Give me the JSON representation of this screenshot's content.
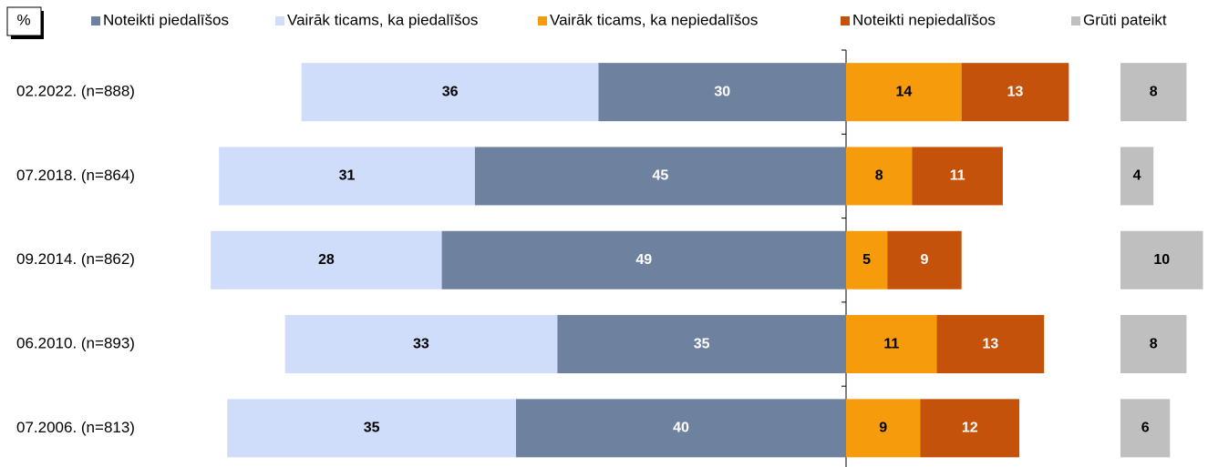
{
  "chart_data": {
    "type": "diverging-bar",
    "unit_label": "%",
    "categories": [
      "02.2022. (n=888)",
      "07.2018. (n=864)",
      "09.2014. (n=862)",
      "06.2010. (n=893)",
      "07.2006. (n=813)"
    ],
    "series": [
      {
        "name": "Noteikti piedalīšos",
        "color": "#6e82a0",
        "values": [
          30,
          45,
          49,
          35,
          40
        ]
      },
      {
        "name": "Vairāk ticams, ka piedalīšos",
        "color": "#cfdcfa",
        "values": [
          36,
          31,
          28,
          33,
          35
        ]
      },
      {
        "name": "Vairāk ticams, ka nepiedalīšos",
        "color": "#f59b0c",
        "values": [
          14,
          8,
          5,
          11,
          9
        ]
      },
      {
        "name": "Noteikti nepiedalīšos",
        "color": "#c5520a",
        "values": [
          13,
          11,
          9,
          13,
          12
        ]
      },
      {
        "name": "Grūti pateikt",
        "color": "#bfbfbf",
        "values": [
          8,
          4,
          10,
          8,
          6
        ]
      }
    ]
  }
}
